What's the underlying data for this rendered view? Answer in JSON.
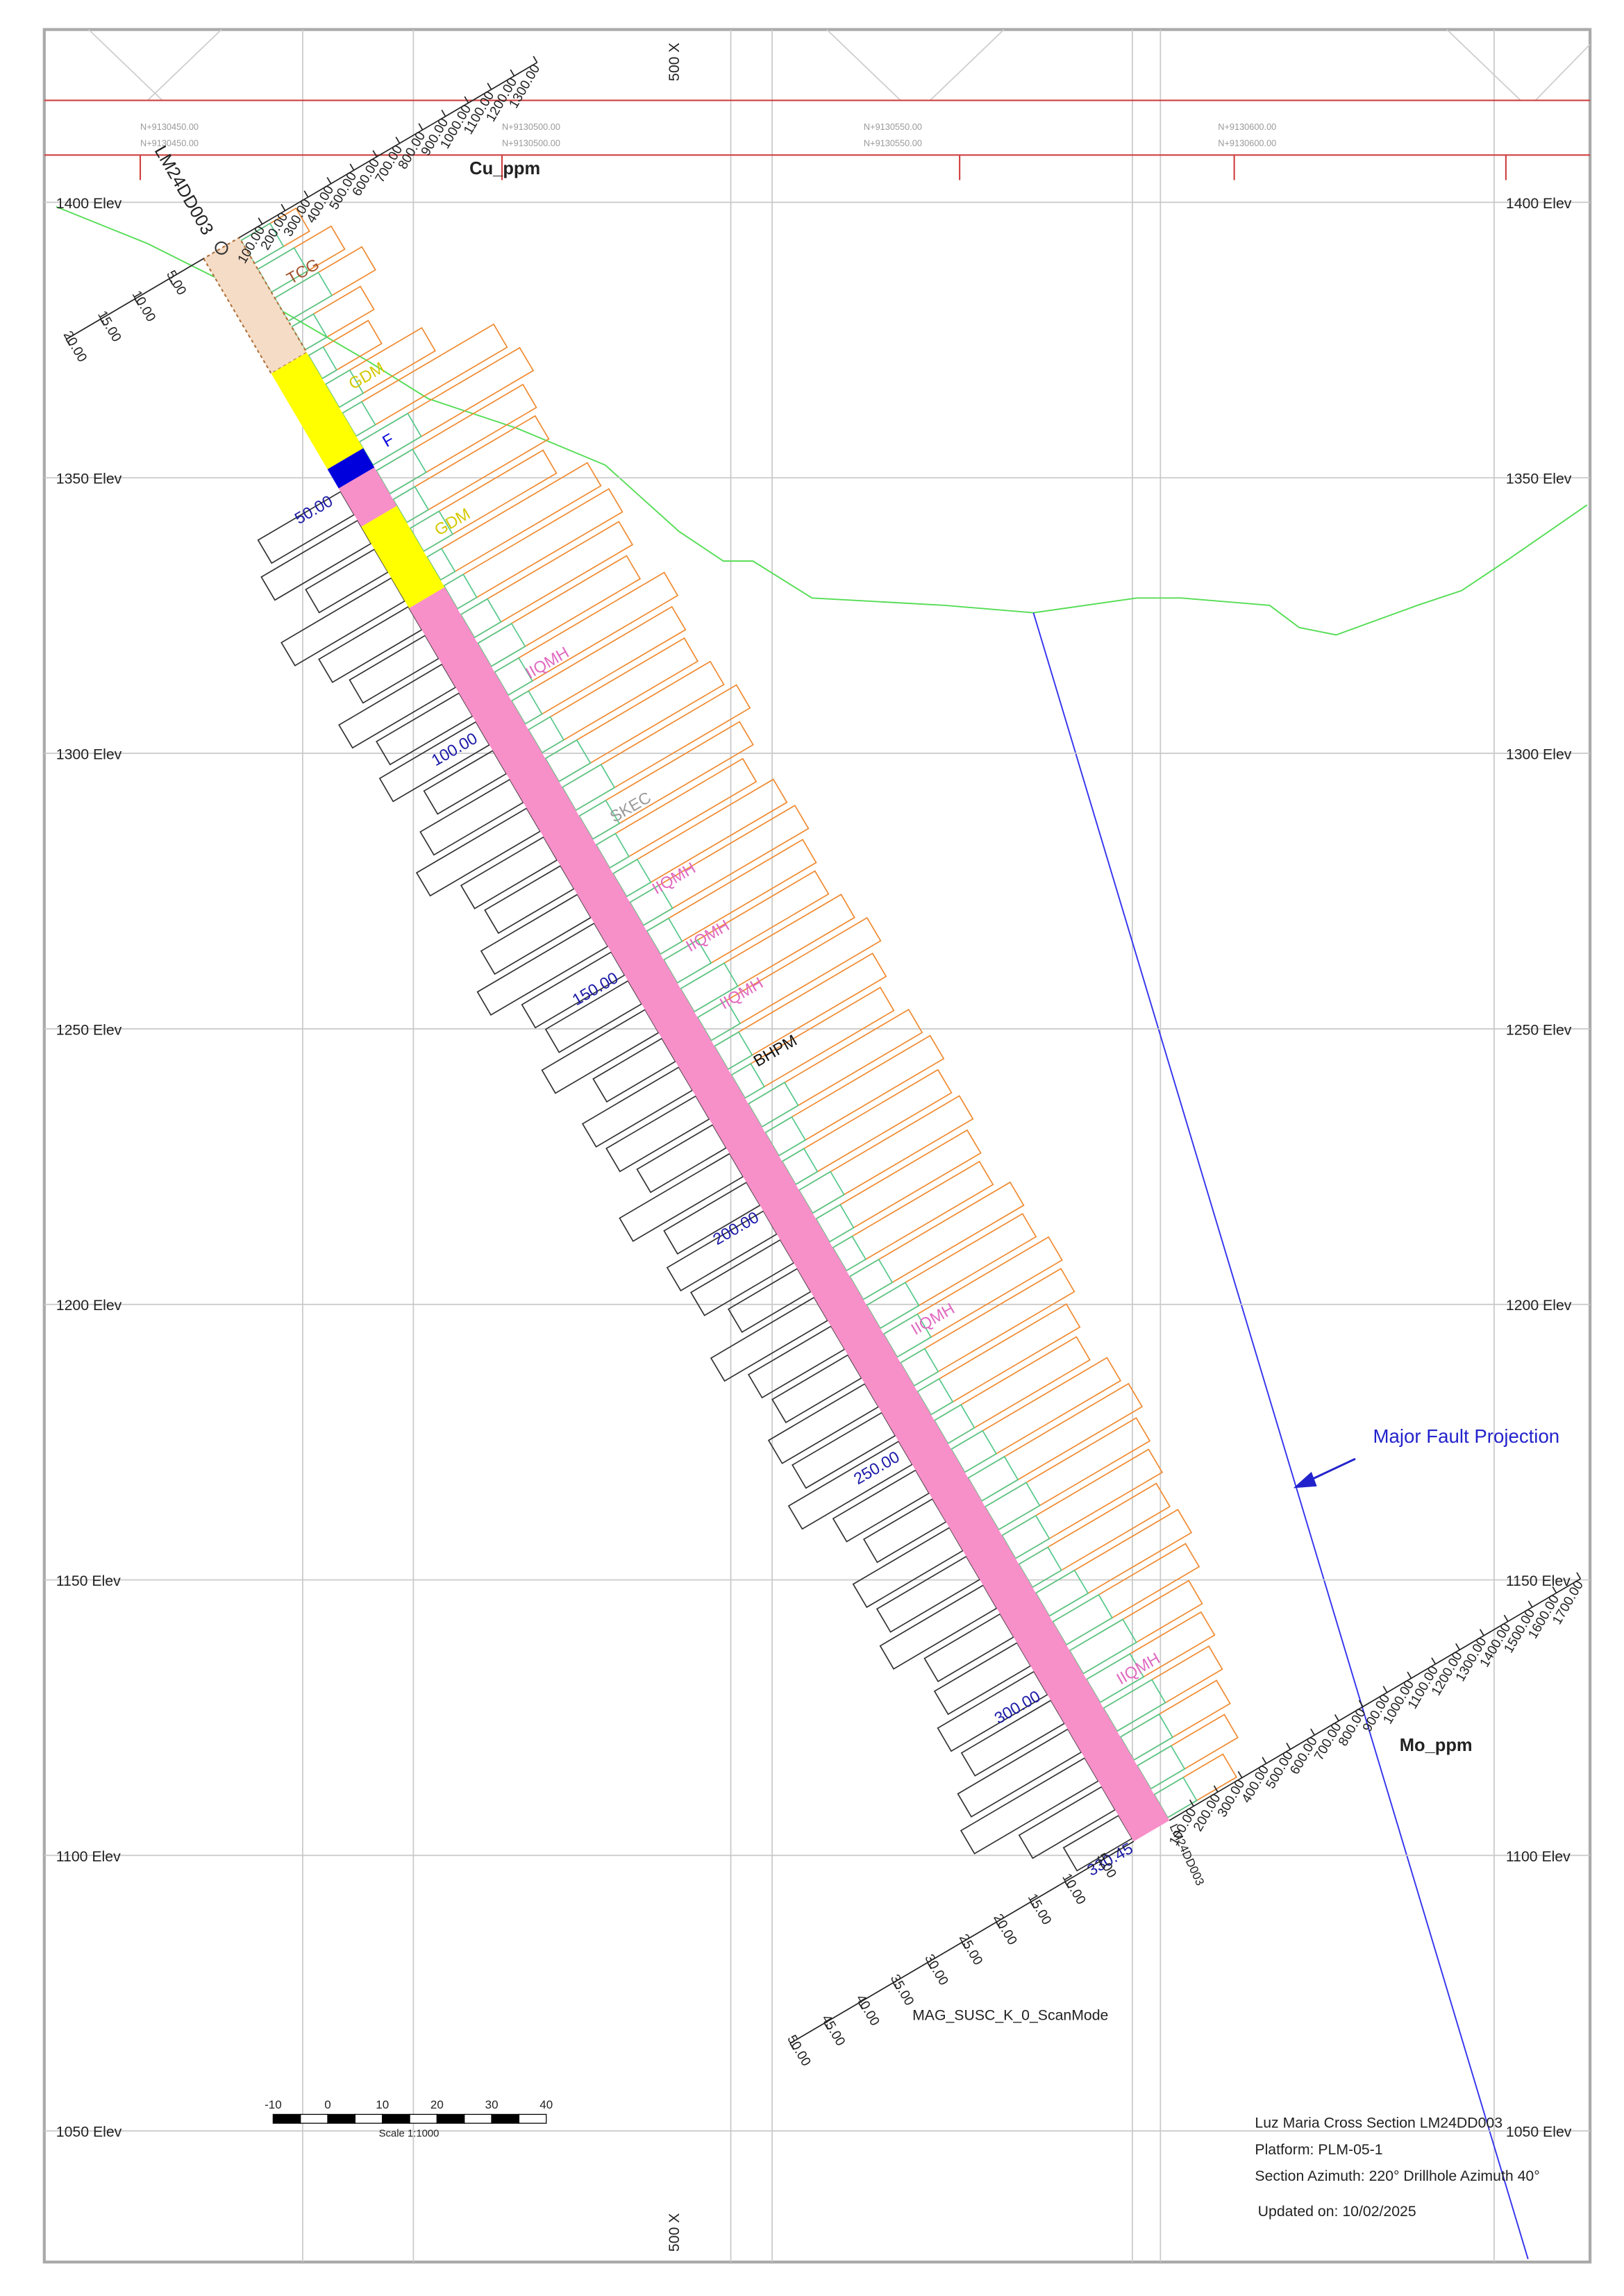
{
  "hole": {
    "name": "LM24DD003",
    "end_depth": {
      "value": 330.45,
      "label": "330.45"
    }
  },
  "elevations": [
    {
      "value": 1400,
      "label": "1400 Elev"
    },
    {
      "value": 1350,
      "label": "1350 Elev"
    },
    {
      "value": 1300,
      "label": "1300 Elev"
    },
    {
      "value": 1250,
      "label": "1250 Elev"
    },
    {
      "value": 1200,
      "label": "1200 Elev"
    },
    {
      "value": 1150,
      "label": "1150 Elev"
    },
    {
      "value": 1100,
      "label": "1100 Elev"
    },
    {
      "value": 1050,
      "label": "1050 Elev"
    }
  ],
  "header_labels": [
    "N+9130450.00",
    "N+9130500.00",
    "N+9130550.00",
    "N+9130600.00"
  ],
  "section_label": "500 X",
  "cu_axis": {
    "title": "Cu_ppm",
    "ticks": [
      {
        "value": 100,
        "label": "100.00"
      },
      {
        "value": 200,
        "label": "200.00"
      },
      {
        "value": 300,
        "label": "300.00"
      },
      {
        "value": 400,
        "label": "400.00"
      },
      {
        "value": 500,
        "label": "500.00"
      },
      {
        "value": 600,
        "label": "600.00"
      },
      {
        "value": 700,
        "label": "700.00"
      },
      {
        "value": 800,
        "label": "800.00"
      },
      {
        "value": 900,
        "label": "900.00"
      },
      {
        "value": 1000,
        "label": "1000.00"
      },
      {
        "value": 1100,
        "label": "1100.00"
      },
      {
        "value": 1200,
        "label": "1200.00"
      },
      {
        "value": 1300,
        "label": "1300.00"
      }
    ]
  },
  "mo_axis": {
    "title": "Mo_ppm",
    "ticks": [
      {
        "value": 100,
        "label": "100.00"
      },
      {
        "value": 200,
        "label": "200.00"
      },
      {
        "value": 300,
        "label": "300.00"
      },
      {
        "value": 400,
        "label": "400.00"
      },
      {
        "value": 500,
        "label": "500.00"
      },
      {
        "value": 600,
        "label": "600.00"
      },
      {
        "value": 700,
        "label": "700.00"
      },
      {
        "value": 800,
        "label": "800.00"
      },
      {
        "value": 900,
        "label": "900.00"
      },
      {
        "value": 1000,
        "label": "1000.00"
      },
      {
        "value": 1100,
        "label": "1100.00"
      },
      {
        "value": 1200,
        "label": "1200.00"
      },
      {
        "value": 1300,
        "label": "1300.00"
      },
      {
        "value": 1400,
        "label": "1400.00"
      },
      {
        "value": 1500,
        "label": "1500.00"
      },
      {
        "value": 1600,
        "label": "1600.00"
      },
      {
        "value": 1700,
        "label": "1700.00"
      }
    ]
  },
  "mag_axis": {
    "title": "MAG_SUSC_K_0_ScanMode",
    "top_ticks": [
      {
        "value": 5,
        "label": "5.00"
      },
      {
        "value": 10,
        "label": "10.00"
      },
      {
        "value": 15,
        "label": "15.00"
      },
      {
        "value": 20,
        "label": "20.00"
      }
    ],
    "bottom_ticks": [
      {
        "value": 5,
        "label": "5.00"
      },
      {
        "value": 10,
        "label": "10.00"
      },
      {
        "value": 15,
        "label": "15.00"
      },
      {
        "value": 20,
        "label": "20.00"
      },
      {
        "value": 25,
        "label": "25.00"
      },
      {
        "value": 30,
        "label": "30.00"
      },
      {
        "value": 35,
        "label": "35.00"
      },
      {
        "value": 40,
        "label": "40.00"
      },
      {
        "value": 45,
        "label": "45.00"
      },
      {
        "value": 50,
        "label": "50.00"
      }
    ]
  },
  "depth_labels": [
    {
      "value": 50,
      "label": "50.00"
    },
    {
      "value": 100,
      "label": "100.00"
    },
    {
      "value": 150,
      "label": "150.00"
    },
    {
      "value": 200,
      "label": "200.00"
    },
    {
      "value": 250,
      "label": "250.00"
    },
    {
      "value": 300,
      "label": "300.00"
    }
  ],
  "lithology": [
    {
      "label": "TCG",
      "from": 0,
      "to": 24,
      "color": "#f5dcc6"
    },
    {
      "label": "GDM",
      "from": 24,
      "to": 44,
      "color": "#ffff00"
    },
    {
      "label": "F",
      "from": 44,
      "to": 48,
      "color": "#0000dd"
    },
    {
      "label": "",
      "from": 48,
      "to": 56,
      "color": "#f78fc8"
    },
    {
      "label": "GDM",
      "from": 56,
      "to": 73,
      "color": "#ffff00"
    },
    {
      "label": "",
      "from": 73,
      "to": 330.45,
      "color": "#f78fc8"
    }
  ],
  "lith_labels": [
    {
      "label": "IIQMH",
      "depth": 95,
      "color": "#e06ac0"
    },
    {
      "label": "SKEC",
      "depth": 125,
      "color": "#999999"
    },
    {
      "label": "IIQMH",
      "depth": 140,
      "color": "#e06ac0"
    },
    {
      "label": "IIQMH",
      "depth": 152,
      "color": "#e06ac0"
    },
    {
      "label": "IIQMH",
      "depth": 164,
      "color": "#e06ac0"
    },
    {
      "label": "BHPM",
      "depth": 176,
      "color": "#111111"
    },
    {
      "label": "IIQMH",
      "depth": 232,
      "color": "#e06ac0"
    },
    {
      "label": "IIQMH",
      "depth": 305,
      "color": "#e06ac0"
    }
  ],
  "cu_ppm": [
    240,
    320,
    380,
    300,
    260,
    420,
    660,
    700,
    640,
    620,
    580,
    700,
    720,
    690,
    650,
    740,
    700,
    680,
    720,
    760,
    700,
    640,
    700,
    720,
    680,
    660,
    700,
    740,
    690,
    650,
    700,
    720,
    680,
    700,
    660,
    640,
    700,
    680,
    720,
    700,
    650,
    620,
    680,
    700,
    660,
    640,
    600,
    620,
    580,
    520,
    500,
    460,
    420,
    380,
    300
  ],
  "mo_ppm": [
    120,
    150,
    180,
    90,
    60,
    100,
    80,
    200,
    150,
    90,
    120,
    60,
    80,
    110,
    140,
    100,
    70,
    90,
    130,
    160,
    110,
    80,
    100,
    120,
    90,
    140,
    180,
    120,
    100,
    80,
    150,
    110,
    90,
    130,
    100,
    80,
    120,
    160,
    140,
    100,
    90,
    110,
    130,
    150,
    170,
    140,
    120,
    160,
    190,
    220,
    180,
    200,
    160,
    140,
    120
  ],
  "mag_susc": [
    null,
    null,
    null,
    null,
    null,
    null,
    null,
    null,
    12,
    14,
    10,
    16,
    13,
    11,
    15,
    12,
    14,
    10,
    13,
    16,
    12,
    11,
    14,
    17,
    13,
    12,
    15,
    10,
    14,
    13,
    11,
    16,
    12,
    14,
    13,
    10,
    15,
    12,
    11,
    14,
    13,
    16,
    12,
    10,
    14,
    13,
    15,
    11,
    12,
    14,
    13,
    16,
    18,
    12,
    8
  ],
  "fault_label": "Major Fault Projection",
  "scale_bar": {
    "ticks": [
      -10,
      0,
      10,
      20,
      30,
      40
    ],
    "label": "Scale 1:1000"
  },
  "info": [
    "Luz Maria Cross Section LM24DD003",
    "Platform: PLM-05-1",
    "Section Azimuth: 220° Drillhole Azimuth 40°",
    "Updated on: 10/02/2025"
  ]
}
